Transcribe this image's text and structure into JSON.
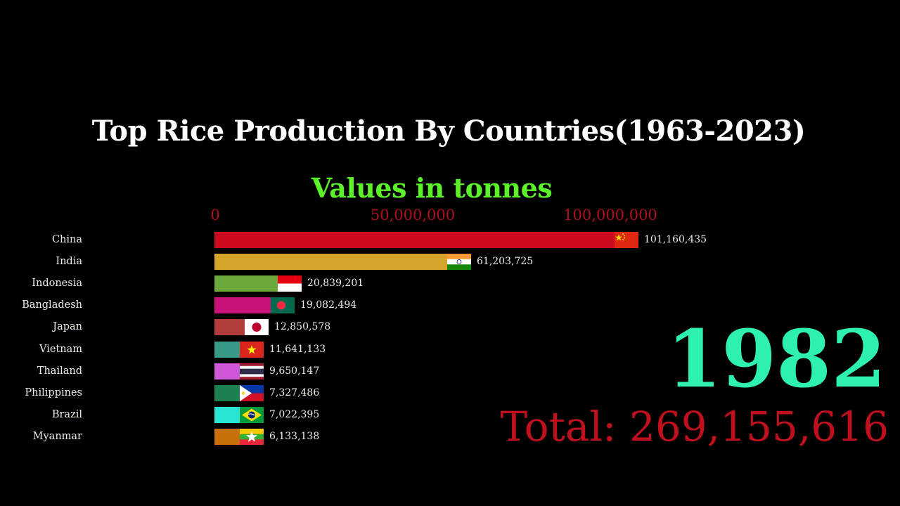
{
  "title": "Top Rice Production By Countries(1963-2023)",
  "subtitle": "Values in tonnes",
  "axis": {
    "ticks": [
      {
        "label": "0",
        "value": 0
      },
      {
        "label": "50,000,000",
        "value": 50000000
      },
      {
        "label": "100,000,000",
        "value": 100000000
      }
    ]
  },
  "year": "1982",
  "total": "Total: 269,155,616",
  "colors": {
    "background": "#000000",
    "title": "#ffffff",
    "subtitle": "#5cf22a",
    "ticks": "#b0101c",
    "year": "#2ef0b0",
    "total": "#c0101e"
  },
  "rows": [
    {
      "country": "China",
      "value_label": "101,160,435",
      "value": 101160435,
      "color": "#cc0a1e",
      "flag": "china-flag-icon"
    },
    {
      "country": "India",
      "value_label": "61,203,725",
      "value": 61203725,
      "color": "#d4a52a",
      "flag": "india-flag-icon"
    },
    {
      "country": "Indonesia",
      "value_label": "20,839,201",
      "value": 20839201,
      "color": "#6aa83c",
      "flag": "indonesia-flag-icon"
    },
    {
      "country": "Bangladesh",
      "value_label": "19,082,494",
      "value": 19082494,
      "color": "#c8127a",
      "flag": "bangladesh-flag-icon"
    },
    {
      "country": "Japan",
      "value_label": "12,850,578",
      "value": 12850578,
      "color": "#b03c3c",
      "flag": "japan-flag-icon"
    },
    {
      "country": "Vietnam",
      "value_label": "11,641,133",
      "value": 11641133,
      "color": "#3a9a8a",
      "flag": "vietnam-flag-icon"
    },
    {
      "country": "Thailand",
      "value_label": "9,650,147",
      "value": 9650147,
      "color": "#d058d8",
      "flag": "thailand-flag-icon"
    },
    {
      "country": "Philippines",
      "value_label": "7,327,486",
      "value": 7327486,
      "color": "#1e8050",
      "flag": "philippines-flag-icon"
    },
    {
      "country": "Brazil",
      "value_label": "7,022,395",
      "value": 7022395,
      "color": "#28e4d4",
      "flag": "brazil-flag-icon"
    },
    {
      "country": "Myanmar",
      "value_label": "6,133,138",
      "value": 6133138,
      "color": "#c8700e",
      "flag": "myanmar-flag-icon"
    }
  ],
  "chart_data": {
    "type": "bar",
    "orientation": "horizontal",
    "title": "Top Rice Production By Countries(1963-2023)",
    "subtitle": "Values in tonnes",
    "xlabel": "",
    "ylabel": "",
    "frame_label": "1982",
    "annotation": "Total: 269,155,616",
    "categories": [
      "China",
      "India",
      "Indonesia",
      "Bangladesh",
      "Japan",
      "Vietnam",
      "Thailand",
      "Philippines",
      "Brazil",
      "Myanmar"
    ],
    "values": [
      101160435,
      61203725,
      20839201,
      19082494,
      12850578,
      11641133,
      9650147,
      7327486,
      7022395,
      6133138
    ],
    "xticks": [
      0,
      50000000,
      100000000
    ],
    "xtick_labels": [
      "0",
      "50,000,000",
      "100,000,000"
    ],
    "xlim": [
      0,
      101160435
    ],
    "grid": false,
    "legend": "none"
  }
}
